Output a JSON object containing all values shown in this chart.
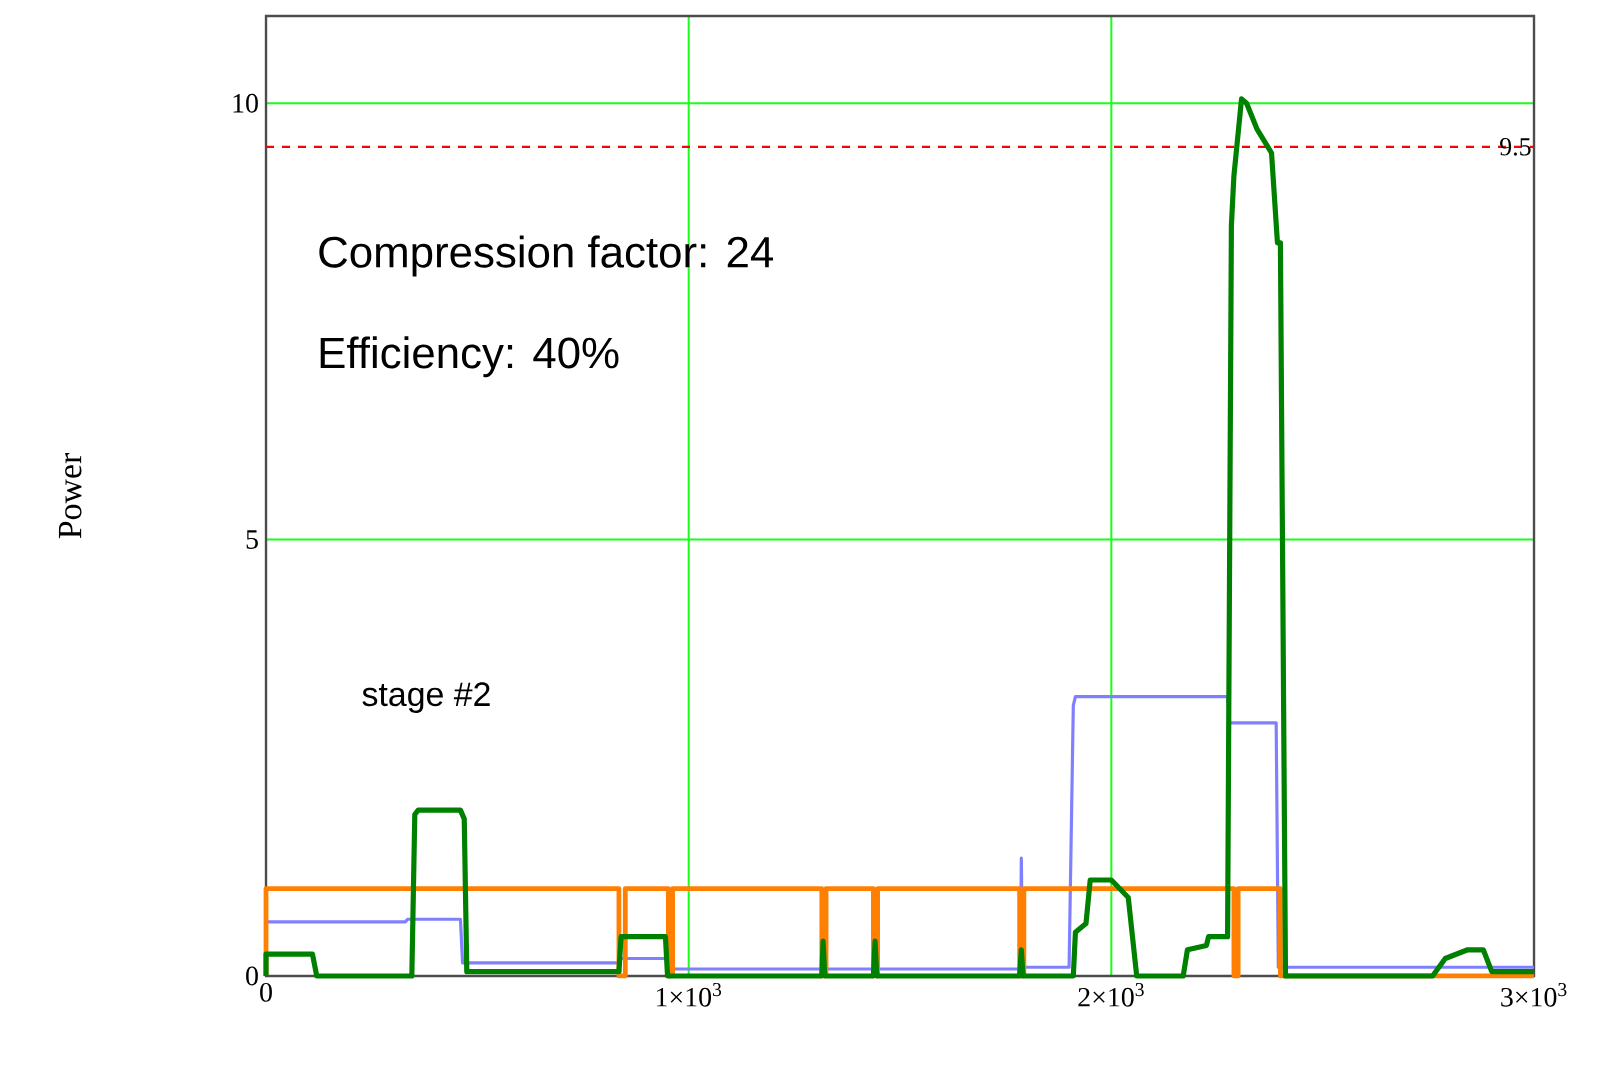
{
  "chart_data": {
    "type": "line",
    "ylabel": "Power",
    "xlim": [
      0,
      3000
    ],
    "ylim": [
      0,
      11
    ],
    "xticks": [
      0,
      {
        "value": 1000,
        "label": "1×10$^{3}$"
      },
      {
        "value": 2000,
        "label": "2×10$^{3}$"
      },
      {
        "value": 3000,
        "label": "3×10$^{3}$"
      }
    ],
    "yticks": [
      0,
      5,
      10
    ],
    "grid": true,
    "annotations": [
      "Compression factor: 24",
      "Efficiency: 40%",
      "stage #2"
    ],
    "ref_lines": [
      {
        "axis": "y",
        "value": 9.5,
        "label": "9.5",
        "color": "#ff0000",
        "line_style": "dashed"
      }
    ],
    "series": [
      {
        "color": "#8080ff",
        "x": [
          0,
          0,
          330,
          335,
          460,
          465,
          835,
          840,
          955,
          960,
          1785,
          1787,
          1790,
          1900,
          1910,
          1915,
          2275,
          2280,
          2390,
          2395,
          3000
        ],
        "values": [
          0,
          0.62,
          0.62,
          0.65,
          0.65,
          0.15,
          0.15,
          0.2,
          0.2,
          0.08,
          0.08,
          1.35,
          0.1,
          0.1,
          3.1,
          3.2,
          3.2,
          2.9,
          2.9,
          0.1,
          0.1
        ]
      },
      {
        "color": "#ff8000",
        "x": [
          0,
          0,
          835,
          835,
          850,
          850,
          952,
          952,
          962,
          962,
          1315,
          1315,
          1325,
          1325,
          1437,
          1437,
          1447,
          1447,
          1783,
          1783,
          1793,
          1793,
          2290,
          2290,
          2300,
          2300,
          2400,
          2400,
          3000
        ],
        "values": [
          0,
          1,
          1,
          0,
          0,
          1,
          1,
          0,
          0,
          1,
          1,
          0,
          0,
          1,
          1,
          0,
          0,
          1,
          1,
          0,
          0,
          1,
          1,
          0,
          0,
          1,
          1,
          0,
          0
        ]
      },
      {
        "color": "#008000",
        "x": [
          0,
          0,
          110,
          120,
          345,
          352,
          360,
          460,
          469,
          475,
          835,
          840,
          945,
          950,
          1315,
          1318,
          1322,
          1437,
          1441,
          1445,
          1783,
          1787,
          1791,
          1910,
          1915,
          1940,
          1950,
          2000,
          2040,
          2060,
          2170,
          2180,
          2225,
          2230,
          2275,
          2284,
          2290,
          2308,
          2320,
          2345,
          2379,
          2393,
          2400,
          2412,
          2760,
          2790,
          2843,
          2880,
          2900,
          3000
        ],
        "values": [
          0,
          0.25,
          0.25,
          0,
          0,
          1.85,
          1.9,
          1.9,
          1.8,
          0.05,
          0.05,
          0.45,
          0.45,
          0,
          0,
          0.4,
          0,
          0,
          0.4,
          0,
          0,
          0.3,
          0,
          0,
          0.5,
          0.6,
          1.1,
          1.1,
          0.9,
          0,
          0,
          0.3,
          0.35,
          0.45,
          0.45,
          8.6,
          9.17,
          10.05,
          10.0,
          9.7,
          9.43,
          8.4,
          8.4,
          0,
          0,
          0.2,
          0.3,
          0.3,
          0.05,
          0.05
        ]
      }
    ]
  }
}
